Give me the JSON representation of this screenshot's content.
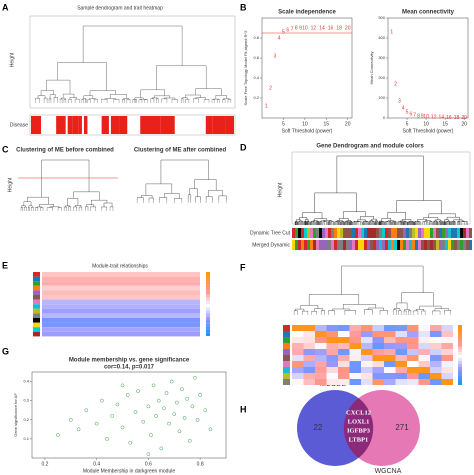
{
  "panels": {
    "labels": [
      "A",
      "B",
      "C",
      "D",
      "E",
      "F",
      "G",
      "H"
    ],
    "a": {
      "title": "Sample dendrogram and trait heatmap",
      "ylabel": "Height",
      "trait": "Disease"
    },
    "c": {
      "left_title": "Clustering of ME before combined",
      "right_title": "Clustering of ME after combined",
      "ylabel": "Height"
    },
    "d": {
      "title": "Gene Dendrogram and module colors",
      "ylabel": "Height",
      "band1": "Dynamic Tree Cut",
      "band2": "Merged Dynamic"
    },
    "e": {
      "title": "Module-trait relationships"
    },
    "h": {
      "left": "MCODE",
      "right": "WGCNA",
      "left_only": "22",
      "right_only": "271",
      "shared": [
        "CXCL12",
        "LOXL1",
        "IGFBP3",
        "LTBP1"
      ]
    }
  },
  "chart_data": [
    {
      "type": "scatter",
      "title": "Scale independence",
      "xlabel": "Soft Threshold (power)",
      "ylabel": "Scale Free Topology Model Fit,signed R^2",
      "marker": "label",
      "color": "#e8332a",
      "hline": 0.85,
      "x": [
        1,
        2,
        3,
        4,
        5,
        6,
        7,
        8,
        9,
        10,
        12,
        14,
        16,
        18,
        20
      ],
      "values": [
        0.12,
        0.3,
        0.62,
        0.8,
        0.86,
        0.88,
        0.89,
        0.9,
        0.9,
        0.9,
        0.9,
        0.9,
        0.9,
        0.9,
        0.9
      ],
      "xlim": [
        0,
        21
      ],
      "xticks": [
        5,
        10,
        15,
        20
      ],
      "ylim": [
        0,
        1
      ],
      "yticks": [
        0.2,
        0.4,
        0.6,
        0.8
      ]
    },
    {
      "type": "scatter",
      "title": "Mean connectivity",
      "xlabel": "Soft Threshold (power)",
      "ylabel": "Mean Connectivity",
      "marker": "label",
      "color": "#e8332a",
      "x": [
        1,
        2,
        3,
        4,
        5,
        6,
        7,
        8,
        9,
        10,
        12,
        14,
        16,
        18,
        20
      ],
      "values": [
        430,
        170,
        85,
        48,
        30,
        20,
        14,
        10,
        8,
        6,
        4,
        3,
        2,
        2,
        1
      ],
      "xlim": [
        0,
        21
      ],
      "xticks": [
        5,
        10,
        15,
        20
      ],
      "ylim": [
        0,
        500
      ],
      "yticks": [
        0,
        100,
        200,
        300,
        400,
        500
      ]
    },
    {
      "type": "scatter",
      "title": "Module membership vs. gene significance",
      "subtitle": "cor=0.14, p=0.017",
      "xlabel": "Module Membership in darkgreen module",
      "ylabel": "Gene significance for AF",
      "marker": "circle",
      "color": "#3fa34d",
      "x": [
        0.25,
        0.3,
        0.33,
        0.36,
        0.4,
        0.42,
        0.44,
        0.46,
        0.48,
        0.5,
        0.52,
        0.53,
        0.55,
        0.56,
        0.58,
        0.6,
        0.61,
        0.62,
        0.63,
        0.64,
        0.65,
        0.66,
        0.67,
        0.68,
        0.69,
        0.7,
        0.71,
        0.72,
        0.73,
        0.74,
        0.75,
        0.76,
        0.77,
        0.78,
        0.79,
        0.8,
        0.82,
        0.84,
        0.6,
        0.5
      ],
      "values": [
        0.12,
        0.2,
        0.15,
        0.25,
        0.18,
        0.3,
        0.1,
        0.22,
        0.28,
        0.16,
        0.33,
        0.08,
        0.24,
        0.35,
        0.19,
        0.27,
        0.12,
        0.38,
        0.22,
        0.3,
        0.05,
        0.26,
        0.34,
        0.18,
        0.4,
        0.23,
        0.29,
        0.14,
        0.36,
        0.21,
        0.31,
        0.09,
        0.27,
        0.42,
        0.2,
        0.33,
        0.25,
        0.15,
        0.02,
        0.38
      ],
      "xlim": [
        0.15,
        0.9
      ],
      "xticks": [
        0.2,
        0.4,
        0.6,
        0.8
      ],
      "ylim": [
        0,
        0.45
      ],
      "yticks": [
        0.1,
        0.2,
        0.3,
        0.4
      ]
    }
  ]
}
